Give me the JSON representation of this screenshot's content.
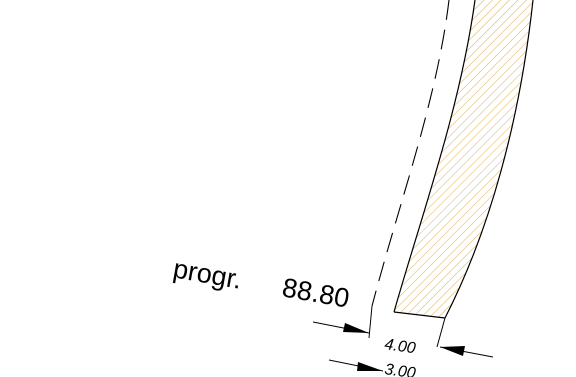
{
  "section": {
    "progressive_prefix": "progr.",
    "progressive_value": "88.80"
  },
  "dimensions": {
    "upper": "4.00",
    "lower": "3.00"
  },
  "colors": {
    "line": "#000000",
    "hatch": "#d9a441",
    "background": "#ffffff"
  }
}
